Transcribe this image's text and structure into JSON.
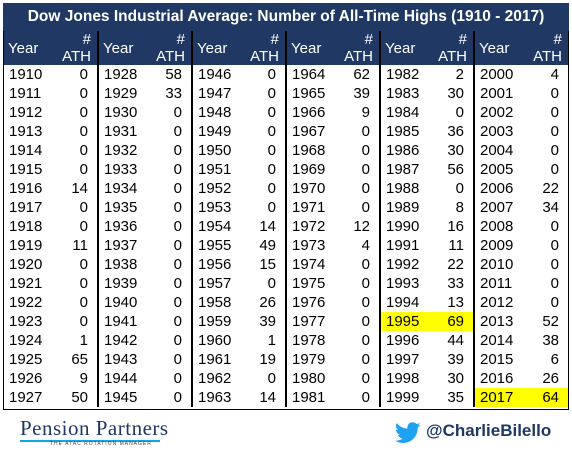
{
  "title": "Dow Jones Industrial Average: Number of All-Time Highs (1910 - 2017)",
  "headers": {
    "year": "Year",
    "ath": "# ATH"
  },
  "colors": {
    "header_bg": "#1f3864",
    "highlight": "#ffff00",
    "brand": "#1f3864",
    "accent": "#0aa9e3"
  },
  "icons": {
    "twitter": "twitter-bird-icon"
  },
  "footer": {
    "logo": "Pension Partners",
    "logo_sub": "THE ATAC ROTATION MANAGER",
    "handle": "@CharlieBilello"
  },
  "chart_data": {
    "type": "table",
    "title": "Dow Jones Industrial Average: Number of All-Time Highs (1910 - 2017)",
    "columns": [
      "Year",
      "# ATH"
    ],
    "highlighted_years": [
      1995,
      2017
    ],
    "rows": [
      [
        "1910",
        "0"
      ],
      [
        "1911",
        "0"
      ],
      [
        "1912",
        "0"
      ],
      [
        "1913",
        "0"
      ],
      [
        "1914",
        "0"
      ],
      [
        "1915",
        "0"
      ],
      [
        "1916",
        "14"
      ],
      [
        "1917",
        "0"
      ],
      [
        "1918",
        "0"
      ],
      [
        "1919",
        "11"
      ],
      [
        "1920",
        "0"
      ],
      [
        "1921",
        "0"
      ],
      [
        "1922",
        "0"
      ],
      [
        "1923",
        "0"
      ],
      [
        "1924",
        "1"
      ],
      [
        "1925",
        "65"
      ],
      [
        "1926",
        "9"
      ],
      [
        "1927",
        "50"
      ],
      [
        "1928",
        "58"
      ],
      [
        "1929",
        "33"
      ],
      [
        "1930",
        "0"
      ],
      [
        "1931",
        "0"
      ],
      [
        "1932",
        "0"
      ],
      [
        "1933",
        "0"
      ],
      [
        "1934",
        "0"
      ],
      [
        "1935",
        "0"
      ],
      [
        "1936",
        "0"
      ],
      [
        "1937",
        "0"
      ],
      [
        "1938",
        "0"
      ],
      [
        "1939",
        "0"
      ],
      [
        "1940",
        "0"
      ],
      [
        "1941",
        "0"
      ],
      [
        "1942",
        "0"
      ],
      [
        "1943",
        "0"
      ],
      [
        "1944",
        "0"
      ],
      [
        "1945",
        "0"
      ],
      [
        "1946",
        "0"
      ],
      [
        "1947",
        "0"
      ],
      [
        "1948",
        "0"
      ],
      [
        "1949",
        "0"
      ],
      [
        "1950",
        "0"
      ],
      [
        "1951",
        "0"
      ],
      [
        "1952",
        "0"
      ],
      [
        "1953",
        "0"
      ],
      [
        "1954",
        "14"
      ],
      [
        "1955",
        "49"
      ],
      [
        "1956",
        "15"
      ],
      [
        "1957",
        "0"
      ],
      [
        "1958",
        "26"
      ],
      [
        "1959",
        "39"
      ],
      [
        "1960",
        "1"
      ],
      [
        "1961",
        "19"
      ],
      [
        "1962",
        "0"
      ],
      [
        "1963",
        "14"
      ],
      [
        "1964",
        "62"
      ],
      [
        "1965",
        "39"
      ],
      [
        "1966",
        "9"
      ],
      [
        "1967",
        "0"
      ],
      [
        "1968",
        "0"
      ],
      [
        "1969",
        "0"
      ],
      [
        "1970",
        "0"
      ],
      [
        "1971",
        "0"
      ],
      [
        "1972",
        "12"
      ],
      [
        "1973",
        "4"
      ],
      [
        "1974",
        "0"
      ],
      [
        "1975",
        "0"
      ],
      [
        "1976",
        "0"
      ],
      [
        "1977",
        "0"
      ],
      [
        "1978",
        "0"
      ],
      [
        "1979",
        "0"
      ],
      [
        "1980",
        "0"
      ],
      [
        "1981",
        "0"
      ],
      [
        "1982",
        "2"
      ],
      [
        "1983",
        "30"
      ],
      [
        "1984",
        "0"
      ],
      [
        "1985",
        "36"
      ],
      [
        "1986",
        "30"
      ],
      [
        "1987",
        "56"
      ],
      [
        "1988",
        "0"
      ],
      [
        "1989",
        "8"
      ],
      [
        "1990",
        "16"
      ],
      [
        "1991",
        "11"
      ],
      [
        "1992",
        "22"
      ],
      [
        "1993",
        "33"
      ],
      [
        "1994",
        "13"
      ],
      [
        "1995",
        "69"
      ],
      [
        "1996",
        "44"
      ],
      [
        "1997",
        "39"
      ],
      [
        "1998",
        "30"
      ],
      [
        "1999",
        "35"
      ],
      [
        "2000",
        "4"
      ],
      [
        "2001",
        "0"
      ],
      [
        "2002",
        "0"
      ],
      [
        "2003",
        "0"
      ],
      [
        "2004",
        "0"
      ],
      [
        "2005",
        "0"
      ],
      [
        "2006",
        "22"
      ],
      [
        "2007",
        "34"
      ],
      [
        "2008",
        "0"
      ],
      [
        "2009",
        "0"
      ],
      [
        "2010",
        "0"
      ],
      [
        "2011",
        "0"
      ],
      [
        "2012",
        "0"
      ],
      [
        "2013",
        "52"
      ],
      [
        "2014",
        "38"
      ],
      [
        "2015",
        "6"
      ],
      [
        "2016",
        "26"
      ],
      [
        "2017",
        "64"
      ]
    ]
  }
}
